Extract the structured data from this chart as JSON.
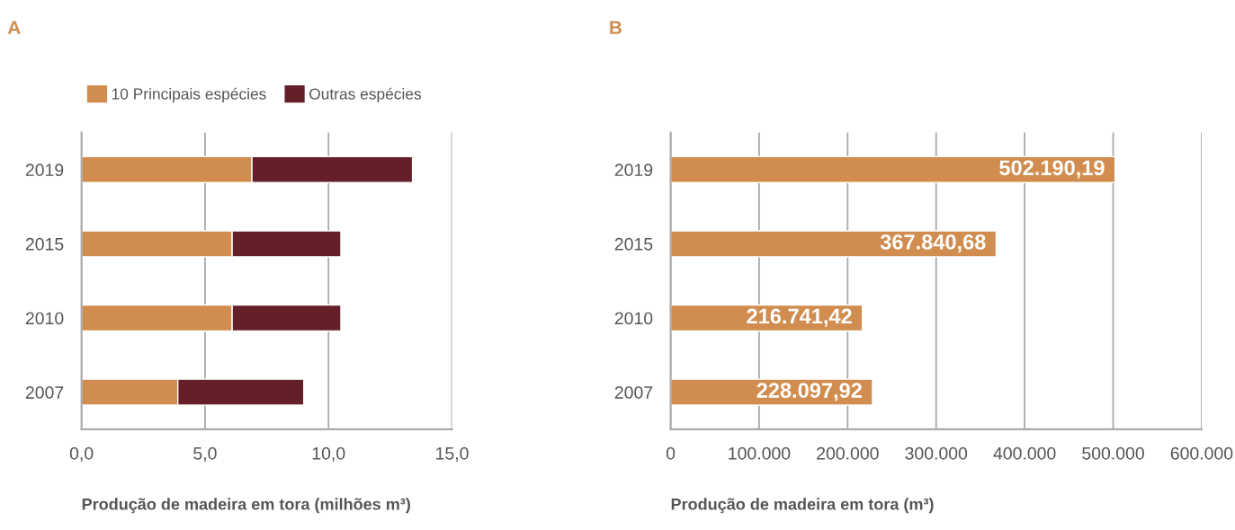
{
  "chart_data": [
    {
      "type": "bar",
      "title": "A",
      "orientation": "horizontal",
      "stacked": true,
      "categories": [
        "2019",
        "2015",
        "2010",
        "2007"
      ],
      "series": [
        {
          "name": "10 Principais espécies",
          "color": "#d18d4f",
          "values": [
            6.9,
            6.1,
            6.1,
            3.9
          ]
        },
        {
          "name": "Outras espécies",
          "color": "#641f29",
          "values": [
            6.5,
            4.4,
            4.4,
            5.1
          ]
        }
      ],
      "xlim": [
        0,
        15
      ],
      "xticks": [
        {
          "value": 0,
          "label": "0,0"
        },
        {
          "value": 5,
          "label": "5,0"
        },
        {
          "value": 10,
          "label": "10,0"
        },
        {
          "value": 15,
          "label": "15,0"
        }
      ],
      "xlabel": "Produção de madeira em tora (milhões m³)",
      "grid": "x",
      "legend": "top left"
    },
    {
      "type": "bar",
      "title": "B",
      "orientation": "horizontal",
      "categories": [
        "2019",
        "2015",
        "2010",
        "2007"
      ],
      "series": [
        {
          "color": "#d18d4f",
          "values": [
            502190.19,
            367840.68,
            216741.42,
            228097.92
          ],
          "value_labels": [
            "502.190,19",
            "367.840,68",
            "216.741,42",
            "228.097,92"
          ]
        }
      ],
      "xlim": [
        0,
        600000
      ],
      "xticks": [
        0,
        {
          "value": 100000,
          "label": "100.000"
        },
        {
          "value": 200000,
          "label": "200.000"
        },
        {
          "value": 300000,
          "label": "300.000"
        },
        {
          "value": 400000,
          "label": "400.000"
        },
        {
          "value": 500000,
          "label": "500.000"
        },
        {
          "value": 600000,
          "label": "600.000"
        }
      ],
      "xlabel": "Produção de madeira em tora (m³)",
      "grid": "x"
    }
  ]
}
